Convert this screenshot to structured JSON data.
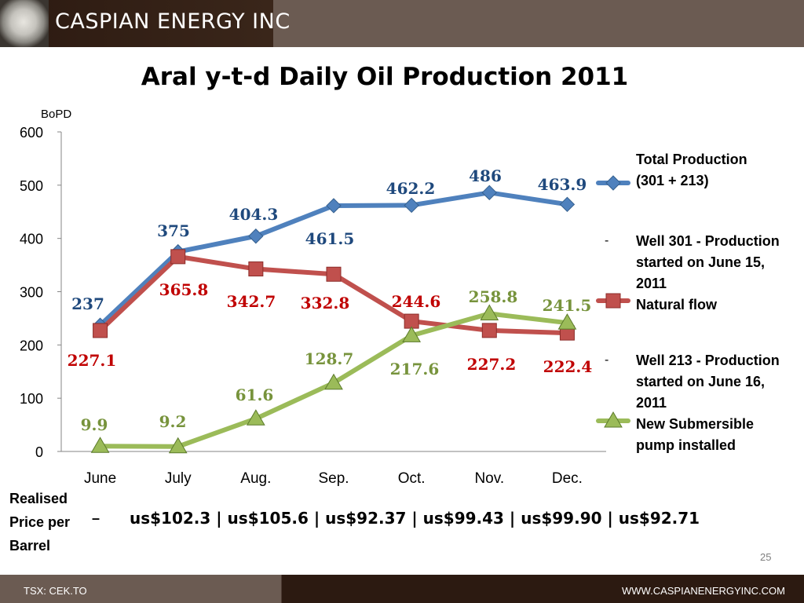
{
  "header": {
    "company": "CASPIAN ENERGY INC"
  },
  "slide": {
    "title": "Aral  y-t-d  Daily Oil Production 2011",
    "page_number": "25"
  },
  "chart_data": {
    "type": "line",
    "ylabel": "BoPD",
    "ylim": [
      0,
      600
    ],
    "yticks": [
      "0",
      "100",
      "200",
      "300",
      "400",
      "500",
      "600"
    ],
    "categories": [
      "June",
      "July",
      "Aug.",
      "Sep.",
      "Oct.",
      "Nov.",
      "Dec."
    ],
    "series": [
      {
        "name": "Total Production (301 + 213)",
        "marker": "diamond",
        "color": "#4f81bd",
        "label_color": "#1f497d",
        "values": [
          237,
          375,
          404.3,
          461.5,
          462.2,
          486,
          463.9
        ],
        "labels": [
          "237",
          "375",
          "404.3",
          "461.5",
          "462.2",
          "486",
          "463.9"
        ]
      },
      {
        "name": "Natural flow",
        "marker": "square",
        "color": "#c0504d",
        "label_color": "#c00000",
        "values": [
          227.1,
          365.8,
          342.7,
          332.8,
          244.6,
          227.2,
          222.4
        ],
        "labels": [
          "227.1",
          "365.8",
          "342.7",
          "332.8",
          "244.6",
          "227.2",
          "222.4"
        ]
      },
      {
        "name": "New Submersible pump installed",
        "marker": "triangle",
        "color": "#9bbb59",
        "label_color": "#77933c",
        "values": [
          9.9,
          9.2,
          61.6,
          128.7,
          217.6,
          258.8,
          241.5
        ],
        "labels": [
          "9.9",
          "9.2",
          "61.6",
          "128.7",
          "217.6",
          "258.8",
          "241.5"
        ]
      }
    ],
    "legend_position": "right"
  },
  "legend": {
    "total": {
      "line1": "Total Production",
      "line2": "(301 + 213)"
    },
    "well301": {
      "dash": "-",
      "line1": "Well 301 - Production",
      "line2": "started on June 15,",
      "line3": "2011",
      "line4": "Natural flow"
    },
    "well213": {
      "dash": "-",
      "line1": "Well 213 - Production",
      "line2": "started on June 16,",
      "line3": "2011",
      "line4": "New Submersible",
      "line5": "pump installed"
    }
  },
  "price": {
    "label1": "Realised",
    "label2": "Price per",
    "label3": "Barrel",
    "separator": "–",
    "values": "us$102.3 | us$105.6 | us$92.37 | us$99.43 | us$99.90 | us$92.71"
  },
  "footer": {
    "left": "TSX: CEK.TO",
    "right": "WWW.CASPIANENERGYINC.COM"
  }
}
